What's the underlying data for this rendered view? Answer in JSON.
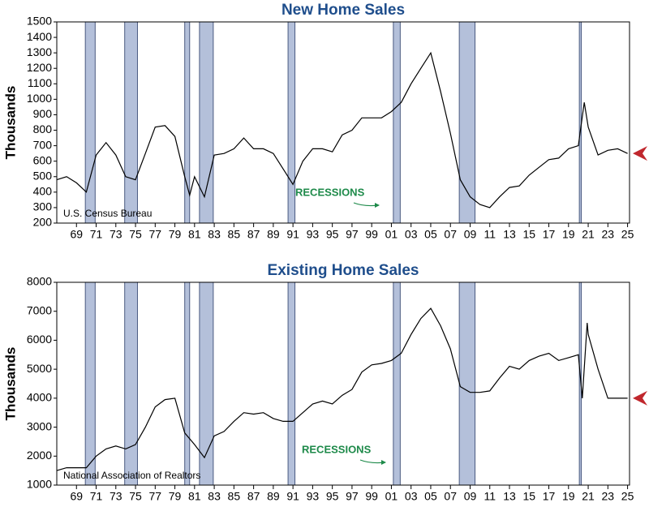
{
  "chart_data": [
    {
      "type": "line",
      "title": "New Home Sales",
      "y_label": "Thousands",
      "annotation": "RECESSIONS",
      "source": "U.S. Census Bureau",
      "x": [
        1967,
        1968,
        1969,
        1970,
        1971,
        1972,
        1973,
        1974,
        1975,
        1976,
        1977,
        1978,
        1979,
        1980,
        1980.5,
        1981,
        1982,
        1983,
        1984,
        1985,
        1986,
        1987,
        1988,
        1989,
        1990,
        1991,
        1992,
        1993,
        1994,
        1995,
        1996,
        1997,
        1998,
        1999,
        2000,
        2001,
        2002,
        2003,
        2004,
        2005,
        2006,
        2007,
        2008,
        2009,
        2010,
        2011,
        2012,
        2013,
        2014,
        2015,
        2016,
        2017,
        2018,
        2019,
        2020,
        2020.6,
        2021,
        2022,
        2023,
        2024,
        2025
      ],
      "series": [
        {
          "color": "#000000",
          "values": [
            480,
            500,
            460,
            400,
            640,
            720,
            640,
            500,
            480,
            650,
            820,
            830,
            760,
            500,
            380,
            500,
            370,
            640,
            650,
            680,
            750,
            680,
            680,
            650,
            550,
            450,
            600,
            680,
            680,
            660,
            770,
            800,
            880,
            880,
            880,
            920,
            980,
            1100,
            1200,
            1300,
            1050,
            780,
            480,
            370,
            320,
            300,
            370,
            430,
            440,
            510,
            560,
            610,
            620,
            680,
            700,
            980,
            820,
            640,
            670,
            680,
            650
          ]
        }
      ],
      "recessions": [
        [
          1969.9,
          1970.9
        ],
        [
          1973.9,
          1975.2
        ],
        [
          1980.0,
          1980.5
        ],
        [
          1981.5,
          1982.9
        ],
        [
          1990.5,
          1991.2
        ],
        [
          2001.2,
          2001.9
        ],
        [
          2007.9,
          2009.5
        ],
        [
          2020.1,
          2020.3
        ]
      ],
      "xlim": [
        1967,
        2025.2
      ],
      "ylim": [
        200,
        1500
      ],
      "yticks": [
        200,
        300,
        400,
        500,
        600,
        700,
        800,
        900,
        1000,
        1100,
        1200,
        1300,
        1400,
        1500
      ],
      "xticks": [
        {
          "value": 1969,
          "label": "69"
        },
        {
          "value": 1971,
          "label": "71"
        },
        {
          "value": 1973,
          "label": "73"
        },
        {
          "value": 1975,
          "label": "75"
        },
        {
          "value": 1977,
          "label": "77"
        },
        {
          "value": 1979,
          "label": "79"
        },
        {
          "value": 1981,
          "label": "81"
        },
        {
          "value": 1983,
          "label": "83"
        },
        {
          "value": 1985,
          "label": "85"
        },
        {
          "value": 1987,
          "label": "87"
        },
        {
          "value": 1989,
          "label": "89"
        },
        {
          "value": 1991,
          "label": "91"
        },
        {
          "value": 1993,
          "label": "93"
        },
        {
          "value": 1995,
          "label": "95"
        },
        {
          "value": 1997,
          "label": "97"
        },
        {
          "value": 1999,
          "label": "99"
        },
        {
          "value": 2001,
          "label": "01"
        },
        {
          "value": 2003,
          "label": "03"
        },
        {
          "value": 2005,
          "label": "05"
        },
        {
          "value": 2007,
          "label": "07"
        },
        {
          "value": 2009,
          "label": "09"
        },
        {
          "value": 2011,
          "label": "11"
        },
        {
          "value": 2013,
          "label": "13"
        },
        {
          "value": 2015,
          "label": "15"
        },
        {
          "value": 2017,
          "label": "17"
        },
        {
          "value": 2019,
          "label": "19"
        },
        {
          "value": 2021,
          "label": "21"
        },
        {
          "value": 2023,
          "label": "23"
        },
        {
          "value": 2025,
          "label": "25"
        }
      ]
    },
    {
      "type": "line",
      "title": "Existing Home Sales",
      "y_label": "Thousands",
      "annotation": "RECESSIONS",
      "source": "National Association of Realtors",
      "x": [
        1967,
        1968,
        1969,
        1970,
        1971,
        1972,
        1973,
        1974,
        1975,
        1976,
        1977,
        1978,
        1979,
        1980,
        1981,
        1982,
        1983,
        1984,
        1985,
        1986,
        1987,
        1988,
        1989,
        1990,
        1991,
        1992,
        1993,
        1994,
        1995,
        1996,
        1997,
        1998,
        1999,
        2000,
        2001,
        2002,
        2003,
        2004,
        2005,
        2006,
        2007,
        2008,
        2009,
        2010,
        2011,
        2012,
        2013,
        2014,
        2015,
        2016,
        2017,
        2018,
        2019,
        2020,
        2020.4,
        2020.9,
        2021,
        2022,
        2023,
        2024,
        2025
      ],
      "series": [
        {
          "color": "#000000",
          "values": [
            1500,
            1600,
            1600,
            1600,
            2000,
            2250,
            2350,
            2250,
            2400,
            3000,
            3700,
            3950,
            4000,
            2800,
            2400,
            1950,
            2700,
            2850,
            3200,
            3500,
            3450,
            3500,
            3300,
            3200,
            3200,
            3500,
            3800,
            3900,
            3800,
            4100,
            4300,
            4900,
            5150,
            5200,
            5300,
            5550,
            6200,
            6750,
            7100,
            6500,
            5700,
            4400,
            4200,
            4200,
            4250,
            4700,
            5100,
            5000,
            5300,
            5450,
            5550,
            5300,
            5400,
            5500,
            4000,
            6600,
            6200,
            5000,
            4000,
            4000,
            4000
          ]
        }
      ],
      "recessions": [
        [
          1969.9,
          1970.9
        ],
        [
          1973.9,
          1975.2
        ],
        [
          1980.0,
          1980.5
        ],
        [
          1981.5,
          1982.9
        ],
        [
          1990.5,
          1991.2
        ],
        [
          2001.2,
          2001.9
        ],
        [
          2007.9,
          2009.5
        ],
        [
          2020.1,
          2020.3
        ]
      ],
      "xlim": [
        1967,
        2025.2
      ],
      "ylim": [
        1000,
        8000
      ],
      "yticks": [
        1000,
        2000,
        3000,
        4000,
        5000,
        6000,
        7000,
        8000
      ],
      "xticks": [
        {
          "value": 1969,
          "label": "69"
        },
        {
          "value": 1971,
          "label": "71"
        },
        {
          "value": 1973,
          "label": "73"
        },
        {
          "value": 1975,
          "label": "75"
        },
        {
          "value": 1977,
          "label": "77"
        },
        {
          "value": 1979,
          "label": "79"
        },
        {
          "value": 1981,
          "label": "81"
        },
        {
          "value": 1983,
          "label": "83"
        },
        {
          "value": 1985,
          "label": "85"
        },
        {
          "value": 1987,
          "label": "87"
        },
        {
          "value": 1989,
          "label": "89"
        },
        {
          "value": 1991,
          "label": "91"
        },
        {
          "value": 1993,
          "label": "93"
        },
        {
          "value": 1995,
          "label": "95"
        },
        {
          "value": 1997,
          "label": "97"
        },
        {
          "value": 1999,
          "label": "99"
        },
        {
          "value": 2001,
          "label": "01"
        },
        {
          "value": 2003,
          "label": "03"
        },
        {
          "value": 2005,
          "label": "05"
        },
        {
          "value": 2007,
          "label": "07"
        },
        {
          "value": 2009,
          "label": "09"
        },
        {
          "value": 2011,
          "label": "11"
        },
        {
          "value": 2013,
          "label": "13"
        },
        {
          "value": 2015,
          "label": "15"
        },
        {
          "value": 2017,
          "label": "17"
        },
        {
          "value": 2019,
          "label": "19"
        },
        {
          "value": 2021,
          "label": "21"
        },
        {
          "value": 2023,
          "label": "23"
        },
        {
          "value": 2025,
          "label": "25"
        }
      ]
    }
  ]
}
